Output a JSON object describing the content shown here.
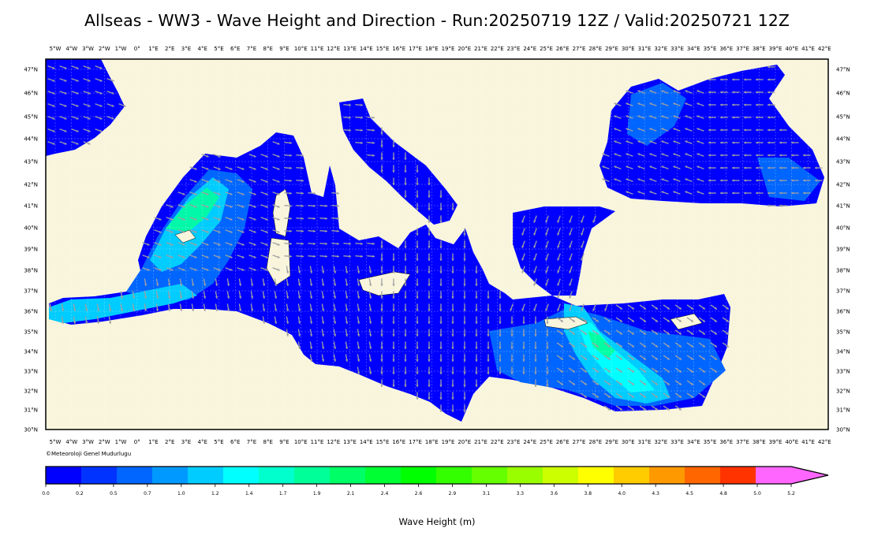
{
  "title": "Allseas - WW3 - Wave Height and Direction - Run:20250719 12Z / Valid:20250721 12Z",
  "copyright": "©Meteoroloji Genel Mudurlugu",
  "lon_labels": [
    "5°W",
    "4°W",
    "3°W",
    "2°W",
    "1°W",
    "0°",
    "1°E",
    "2°E",
    "3°E",
    "4°E",
    "5°E",
    "6°E",
    "7°E",
    "8°E",
    "9°E",
    "10°E",
    "11°E",
    "12°E",
    "13°E",
    "14°E",
    "15°E",
    "16°E",
    "17°E",
    "18°E",
    "19°E",
    "20°E",
    "21°E",
    "22°E",
    "23°E",
    "24°E",
    "25°E",
    "26°E",
    "27°E",
    "28°E",
    "29°E",
    "30°E",
    "31°E",
    "32°E",
    "33°E",
    "34°E",
    "35°E",
    "36°E",
    "37°E",
    "38°E",
    "39°E",
    "40°E",
    "41°E",
    "42°E"
  ],
  "lat_labels": [
    "47°N",
    "46°N",
    "45°N",
    "44°N",
    "43°N",
    "42°N",
    "41°N",
    "40°N",
    "39°N",
    "38°N",
    "37°N",
    "36°N",
    "35°N",
    "34°N",
    "33°N",
    "32°N",
    "31°N",
    "30°N"
  ],
  "colorbar": {
    "title": "Wave Height (m)",
    "ticks": [
      "0.0",
      "0.2",
      "0.5",
      "0.7",
      "1.0",
      "1.2",
      "1.4",
      "1.7",
      "1.9",
      "2.1",
      "2.4",
      "2.6",
      "2.9",
      "3.1",
      "3.3",
      "3.6",
      "3.8",
      "4.0",
      "4.3",
      "4.5",
      "4.8",
      "5.0",
      "5.2"
    ],
    "colors": [
      "#0000ff",
      "#0033ff",
      "#0066ff",
      "#0099ff",
      "#00ccff",
      "#00ffff",
      "#00ffcc",
      "#00ff99",
      "#00ff66",
      "#00ff33",
      "#00ff00",
      "#33ff00",
      "#66ff00",
      "#99ff00",
      "#ccff00",
      "#ffff00",
      "#ffcc00",
      "#ff9900",
      "#ff6600",
      "#ff3300",
      "#ff0000",
      "#ff66ff"
    ]
  },
  "colors": {
    "land": "#f8f5dc",
    "sea_low": "#0000ff",
    "sea_mid": "#0066ff",
    "sea_high": "#00ccff",
    "peak": "#00ff99",
    "arrow": "#a0a0a0"
  }
}
